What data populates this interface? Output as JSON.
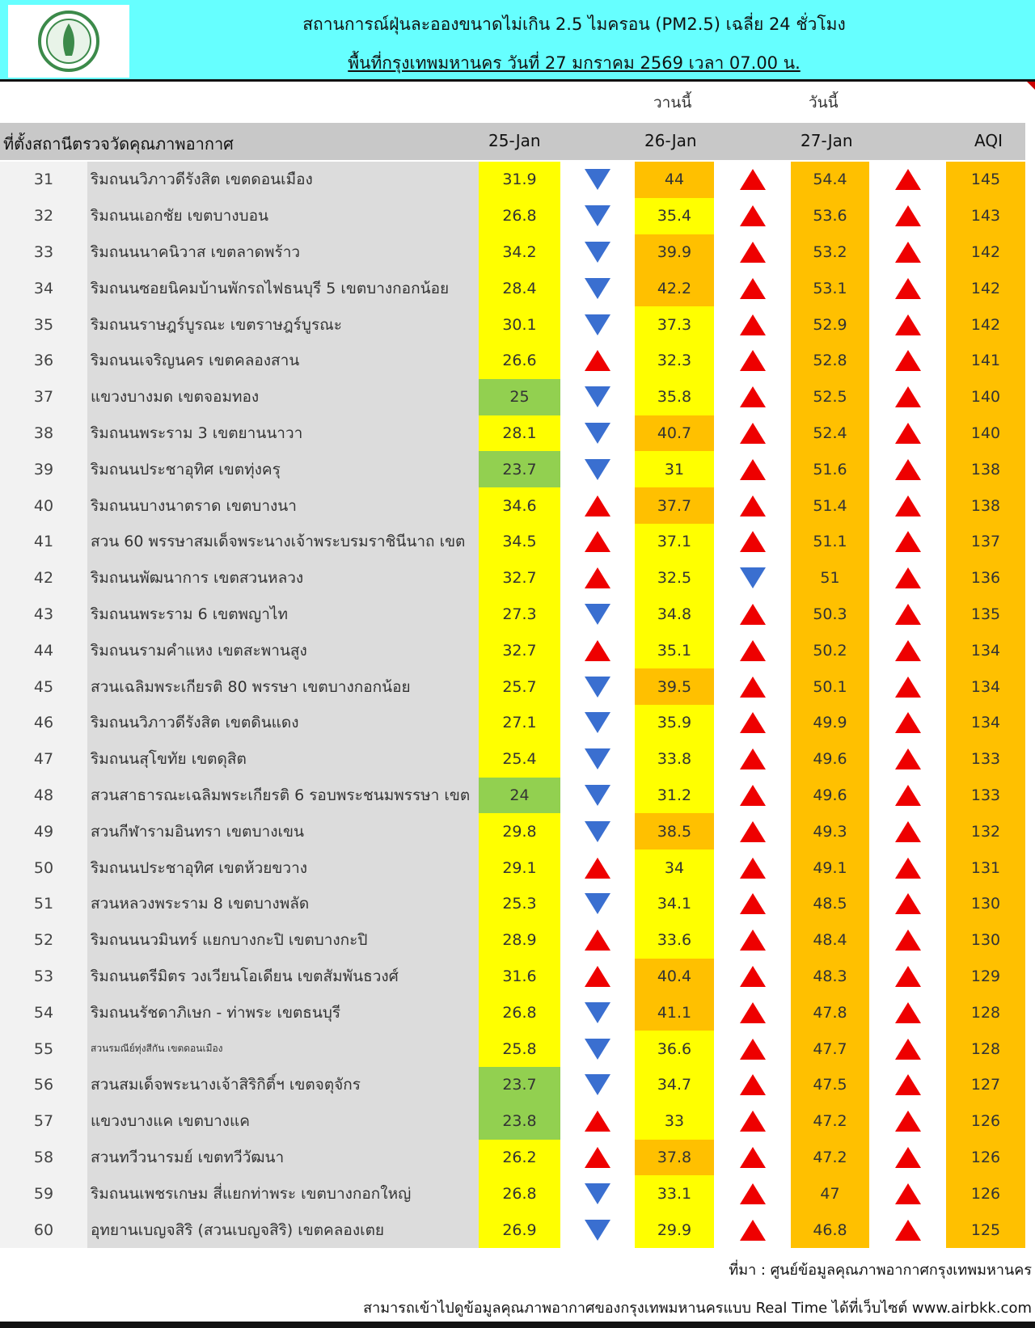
{
  "header": {
    "title_line1": "สถานการณ์ฝุ่นละอองขนาดไม่เกิน 2.5 ไมครอน (PM2.5) เฉลี่ย 24 ชั่วโมง",
    "title_line2": "พื้นที่กรุงเทพมหานคร วันที่ 27 มกราคม 2569 เวลา 07.00 น.",
    "logo": "กรุงเทพมหานคร"
  },
  "sub": {
    "yesterday": "วานนี้",
    "today": "วันนี้"
  },
  "columns": {
    "station": "ที่ตั้งสถานีตรวจวัดคุณภาพอากาศ",
    "d1": "25-Jan",
    "d2": "26-Jan",
    "d3": "27-Jan",
    "aqi": "AQI"
  },
  "colors": {
    "green": "#92d050",
    "yellow": "#ffff00",
    "orange": "#ffc000",
    "up": "#ee0000",
    "down": "#3a6fd0"
  },
  "rows": [
    {
      "n": "31",
      "name": "ริมถนนวิภาวดีรังสิต เขตดอนเมือง",
      "d1": "31.9",
      "c1": "yellow",
      "a1": "down",
      "d2": "44",
      "c2": "orange",
      "a2": "up",
      "d3": "54.4",
      "a3": "up",
      "aqi": "145"
    },
    {
      "n": "32",
      "name": "ริมถนนเอกชัย เขตบางบอน",
      "d1": "26.8",
      "c1": "yellow",
      "a1": "down",
      "d2": "35.4",
      "c2": "yellow",
      "a2": "up",
      "d3": "53.6",
      "a3": "up",
      "aqi": "143"
    },
    {
      "n": "33",
      "name": "ริมถนนนาคนิวาส เขตลาดพร้าว",
      "d1": "34.2",
      "c1": "yellow",
      "a1": "down",
      "d2": "39.9",
      "c2": "orange",
      "a2": "up",
      "d3": "53.2",
      "a3": "up",
      "aqi": "142"
    },
    {
      "n": "34",
      "name": "ริมถนนซอยนิคมบ้านพักรถไฟธนบุรี 5 เขตบางกอกน้อย",
      "d1": "28.4",
      "c1": "yellow",
      "a1": "down",
      "d2": "42.2",
      "c2": "orange",
      "a2": "up",
      "d3": "53.1",
      "a3": "up",
      "aqi": "142"
    },
    {
      "n": "35",
      "name": "ริมถนนราษฎร์บูรณะ เขตราษฎร์บูรณะ",
      "d1": "30.1",
      "c1": "yellow",
      "a1": "down",
      "d2": "37.3",
      "c2": "yellow",
      "a2": "up",
      "d3": "52.9",
      "a3": "up",
      "aqi": "142"
    },
    {
      "n": "36",
      "name": "ริมถนนเจริญนคร เขตคลองสาน",
      "d1": "26.6",
      "c1": "yellow",
      "a1": "up",
      "d2": "32.3",
      "c2": "yellow",
      "a2": "up",
      "d3": "52.8",
      "a3": "up",
      "aqi": "141"
    },
    {
      "n": "37",
      "name": "แขวงบางมด เขตจอมทอง",
      "d1": "25",
      "c1": "green",
      "a1": "down",
      "d2": "35.8",
      "c2": "yellow",
      "a2": "up",
      "d3": "52.5",
      "a3": "up",
      "aqi": "140"
    },
    {
      "n": "38",
      "name": "ริมถนนพระราม 3 เขตยานนาวา",
      "d1": "28.1",
      "c1": "yellow",
      "a1": "down",
      "d2": "40.7",
      "c2": "orange",
      "a2": "up",
      "d3": "52.4",
      "a3": "up",
      "aqi": "140"
    },
    {
      "n": "39",
      "name": "ริมถนนประชาอุทิศ เขตทุ่งครุ",
      "d1": "23.7",
      "c1": "green",
      "a1": "down",
      "d2": "31",
      "c2": "yellow",
      "a2": "up",
      "d3": "51.6",
      "a3": "up",
      "aqi": "138"
    },
    {
      "n": "40",
      "name": "ริมถนนบางนาตราด เขตบางนา",
      "d1": "34.6",
      "c1": "yellow",
      "a1": "up",
      "d2": "37.7",
      "c2": "orange",
      "a2": "up",
      "d3": "51.4",
      "a3": "up",
      "aqi": "138"
    },
    {
      "n": "41",
      "name": "สวน 60 พรรษาสมเด็จพระนางเจ้าพระบรมราชินีนาถ เขต",
      "d1": "34.5",
      "c1": "yellow",
      "a1": "up",
      "d2": "37.1",
      "c2": "yellow",
      "a2": "up",
      "d3": "51.1",
      "a3": "up",
      "aqi": "137"
    },
    {
      "n": "42",
      "name": "ริมถนนพัฒนาการ เขตสวนหลวง",
      "d1": "32.7",
      "c1": "yellow",
      "a1": "up",
      "d2": "32.5",
      "c2": "yellow",
      "a2": "down",
      "d3": "51",
      "a3": "up",
      "aqi": "136"
    },
    {
      "n": "43",
      "name": "ริมถนนพระราม 6 เขตพญาไท",
      "d1": "27.3",
      "c1": "yellow",
      "a1": "down",
      "d2": "34.8",
      "c2": "yellow",
      "a2": "up",
      "d3": "50.3",
      "a3": "up",
      "aqi": "135"
    },
    {
      "n": "44",
      "name": "ริมถนนรามคำแหง เขตสะพานสูง",
      "d1": "32.7",
      "c1": "yellow",
      "a1": "up",
      "d2": "35.1",
      "c2": "yellow",
      "a2": "up",
      "d3": "50.2",
      "a3": "up",
      "aqi": "134"
    },
    {
      "n": "45",
      "name": "สวนเฉลิมพระเกียรติ 80 พรรษา  เขตบางกอกน้อย",
      "d1": "25.7",
      "c1": "yellow",
      "a1": "down",
      "d2": "39.5",
      "c2": "orange",
      "a2": "up",
      "d3": "50.1",
      "a3": "up",
      "aqi": "134"
    },
    {
      "n": "46",
      "name": "ริมถนนวิภาวดีรังสิต เขตดินแดง",
      "d1": "27.1",
      "c1": "yellow",
      "a1": "down",
      "d2": "35.9",
      "c2": "yellow",
      "a2": "up",
      "d3": "49.9",
      "a3": "up",
      "aqi": "134"
    },
    {
      "n": "47",
      "name": "ริมถนนสุโขทัย เขตดุสิต",
      "d1": "25.4",
      "c1": "yellow",
      "a1": "down",
      "d2": "33.8",
      "c2": "yellow",
      "a2": "up",
      "d3": "49.6",
      "a3": "up",
      "aqi": "133"
    },
    {
      "n": "48",
      "name": "สวนสาธารณะเฉลิมพระเกียรติ 6 รอบพระชนมพรรษา เขต",
      "d1": "24",
      "c1": "green",
      "a1": "down",
      "d2": "31.2",
      "c2": "yellow",
      "a2": "up",
      "d3": "49.6",
      "a3": "up",
      "aqi": "133"
    },
    {
      "n": "49",
      "name": "สวนกีฬารามอินทรา เขตบางเขน",
      "d1": "29.8",
      "c1": "yellow",
      "a1": "down",
      "d2": "38.5",
      "c2": "orange",
      "a2": "up",
      "d3": "49.3",
      "a3": "up",
      "aqi": "132"
    },
    {
      "n": "50",
      "name": "ริมถนนประชาอุทิศ เขตห้วยขวาง",
      "d1": "29.1",
      "c1": "yellow",
      "a1": "up",
      "d2": "34",
      "c2": "yellow",
      "a2": "up",
      "d3": "49.1",
      "a3": "up",
      "aqi": "131"
    },
    {
      "n": "51",
      "name": "สวนหลวงพระราม 8 เขตบางพลัด",
      "d1": "25.3",
      "c1": "yellow",
      "a1": "down",
      "d2": "34.1",
      "c2": "yellow",
      "a2": "up",
      "d3": "48.5",
      "a3": "up",
      "aqi": "130"
    },
    {
      "n": "52",
      "name": "ริมถนนนวมินทร์ แยกบางกะปิ เขตบางกะปิ",
      "d1": "28.9",
      "c1": "yellow",
      "a1": "up",
      "d2": "33.6",
      "c2": "yellow",
      "a2": "up",
      "d3": "48.4",
      "a3": "up",
      "aqi": "130"
    },
    {
      "n": "53",
      "name": "ริมถนนตรีมิตร วงเวียนโอเดียน เขตสัมพันธวงศ์",
      "d1": "31.6",
      "c1": "yellow",
      "a1": "up",
      "d2": "40.4",
      "c2": "orange",
      "a2": "up",
      "d3": "48.3",
      "a3": "up",
      "aqi": "129"
    },
    {
      "n": "54",
      "name": "ริมถนนรัชดาภิเษก - ท่าพระ เขตธนบุรี",
      "d1": "26.8",
      "c1": "yellow",
      "a1": "down",
      "d2": "41.1",
      "c2": "orange",
      "a2": "up",
      "d3": "47.8",
      "a3": "up",
      "aqi": "128"
    },
    {
      "n": "55",
      "name": "สวนรมณีย์ทุ่งสีกัน เขตดอนเมือง",
      "small": true,
      "d1": "25.8",
      "c1": "yellow",
      "a1": "down",
      "d2": "36.6",
      "c2": "yellow",
      "a2": "up",
      "d3": "47.7",
      "a3": "up",
      "aqi": "128"
    },
    {
      "n": "56",
      "name": "สวนสมเด็จพระนางเจ้าสิริกิติ์ฯ เขตจตุจักร",
      "d1": "23.7",
      "c1": "green",
      "a1": "down",
      "d2": "34.7",
      "c2": "yellow",
      "a2": "up",
      "d3": "47.5",
      "a3": "up",
      "aqi": "127"
    },
    {
      "n": "57",
      "name": "แขวงบางแค เขตบางแค",
      "d1": "23.8",
      "c1": "green",
      "a1": "up",
      "d2": "33",
      "c2": "yellow",
      "a2": "up",
      "d3": "47.2",
      "a3": "up",
      "aqi": "126"
    },
    {
      "n": "58",
      "name": "สวนทวีวนารมย์ เขตทวีวัฒนา",
      "d1": "26.2",
      "c1": "yellow",
      "a1": "up",
      "d2": "37.8",
      "c2": "orange",
      "a2": "up",
      "d3": "47.2",
      "a3": "up",
      "aqi": "126"
    },
    {
      "n": "59",
      "name": "ริมถนนเพชรเกษม สี่แยกท่าพระ เขตบางกอกใหญ่",
      "d1": "26.8",
      "c1": "yellow",
      "a1": "down",
      "d2": "33.1",
      "c2": "yellow",
      "a2": "up",
      "d3": "47",
      "a3": "up",
      "aqi": "126"
    },
    {
      "n": "60",
      "name": "อุทยานเบญจสิริ (สวนเบญจสิริ) เขตคลองเตย",
      "d1": "26.9",
      "c1": "yellow",
      "a1": "down",
      "d2": "29.9",
      "c2": "yellow",
      "a2": "up",
      "d3": "46.8",
      "a3": "up",
      "aqi": "125"
    }
  ],
  "footer": {
    "source": "ที่มา : ศูนย์ข้อมูลคุณภาพอากาศกรุงเทพมหานคร",
    "note": "สามารถเข้าไปดูข้อมูลคุณภาพอากาศของกรุงเทพมหานครแบบ Real Time ได้ที่เว็บไซต์ www.airbkk.com"
  }
}
